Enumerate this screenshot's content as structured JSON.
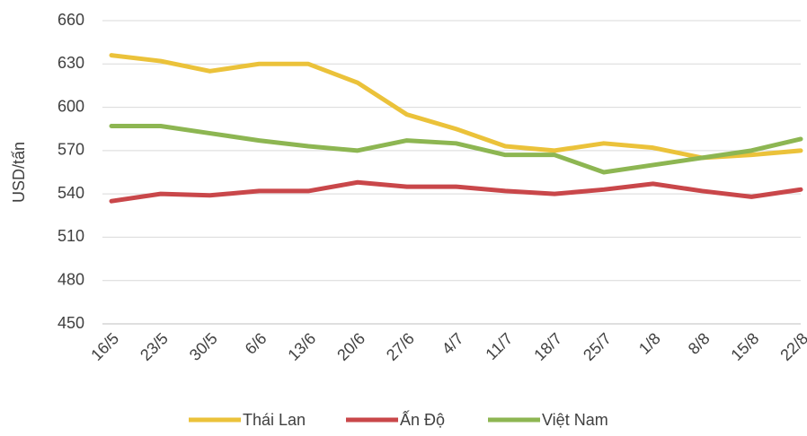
{
  "chart_data": {
    "type": "line",
    "y_label": "USD/tấn",
    "categories": [
      "16/5",
      "23/5",
      "30/5",
      "6/6",
      "13/6",
      "20/6",
      "27/6",
      "4/7",
      "11/7",
      "18/7",
      "25/7",
      "1/8",
      "8/8",
      "15/8",
      "22/8"
    ],
    "series": [
      {
        "name": "Thái Lan",
        "color": "#ebc23a",
        "values": [
          636,
          632,
          625,
          630,
          630,
          617,
          595,
          585,
          573,
          570,
          575,
          572,
          565,
          567,
          570
        ]
      },
      {
        "name": "Ấn Độ",
        "color": "#c9474a",
        "values": [
          535,
          540,
          539,
          542,
          542,
          548,
          545,
          545,
          542,
          540,
          543,
          547,
          542,
          538,
          543
        ]
      },
      {
        "name": "Việt Nam",
        "color": "#8db652",
        "values": [
          587,
          587,
          582,
          577,
          573,
          570,
          577,
          575,
          567,
          567,
          555,
          560,
          565,
          570,
          578
        ]
      }
    ],
    "ylim": [
      450,
      660
    ],
    "yticks": [
      450,
      480,
      510,
      540,
      570,
      600,
      630,
      660
    ],
    "grid": true,
    "legend": "bottom"
  }
}
